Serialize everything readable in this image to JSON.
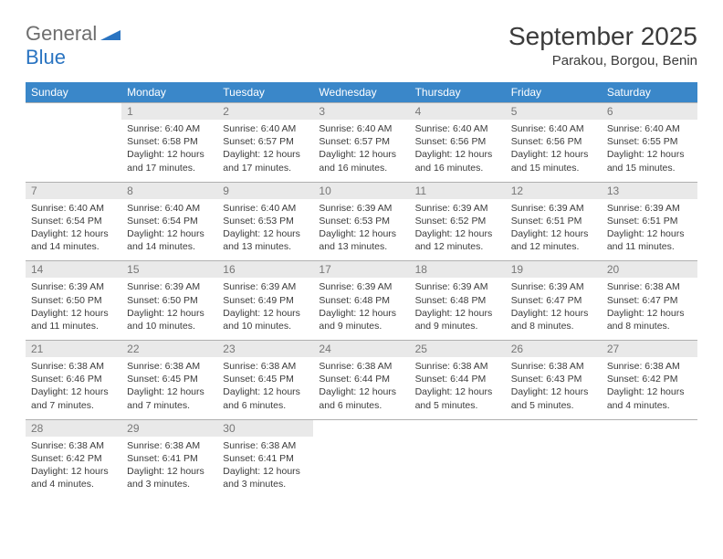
{
  "logo": {
    "general": "General",
    "blue": "Blue",
    "accent_color": "#2a74c1",
    "shape_color": "#2a74c1"
  },
  "header": {
    "title": "September 2025",
    "location": "Parakou, Borgou, Benin"
  },
  "colors": {
    "header_bg": "#3a87c9",
    "header_fg": "#ffffff",
    "daynum_bg": "#e9e9e9",
    "daynum_fg": "#777777",
    "text": "#3b3b3b",
    "row_border": "#b0b0b0"
  },
  "weekdays": [
    "Sunday",
    "Monday",
    "Tuesday",
    "Wednesday",
    "Thursday",
    "Friday",
    "Saturday"
  ],
  "weeks": [
    [
      null,
      {
        "n": "1",
        "sr": "Sunrise: 6:40 AM",
        "ss": "Sunset: 6:58 PM",
        "dl": "Daylight: 12 hours and 17 minutes."
      },
      {
        "n": "2",
        "sr": "Sunrise: 6:40 AM",
        "ss": "Sunset: 6:57 PM",
        "dl": "Daylight: 12 hours and 17 minutes."
      },
      {
        "n": "3",
        "sr": "Sunrise: 6:40 AM",
        "ss": "Sunset: 6:57 PM",
        "dl": "Daylight: 12 hours and 16 minutes."
      },
      {
        "n": "4",
        "sr": "Sunrise: 6:40 AM",
        "ss": "Sunset: 6:56 PM",
        "dl": "Daylight: 12 hours and 16 minutes."
      },
      {
        "n": "5",
        "sr": "Sunrise: 6:40 AM",
        "ss": "Sunset: 6:56 PM",
        "dl": "Daylight: 12 hours and 15 minutes."
      },
      {
        "n": "6",
        "sr": "Sunrise: 6:40 AM",
        "ss": "Sunset: 6:55 PM",
        "dl": "Daylight: 12 hours and 15 minutes."
      }
    ],
    [
      {
        "n": "7",
        "sr": "Sunrise: 6:40 AM",
        "ss": "Sunset: 6:54 PM",
        "dl": "Daylight: 12 hours and 14 minutes."
      },
      {
        "n": "8",
        "sr": "Sunrise: 6:40 AM",
        "ss": "Sunset: 6:54 PM",
        "dl": "Daylight: 12 hours and 14 minutes."
      },
      {
        "n": "9",
        "sr": "Sunrise: 6:40 AM",
        "ss": "Sunset: 6:53 PM",
        "dl": "Daylight: 12 hours and 13 minutes."
      },
      {
        "n": "10",
        "sr": "Sunrise: 6:39 AM",
        "ss": "Sunset: 6:53 PM",
        "dl": "Daylight: 12 hours and 13 minutes."
      },
      {
        "n": "11",
        "sr": "Sunrise: 6:39 AM",
        "ss": "Sunset: 6:52 PM",
        "dl": "Daylight: 12 hours and 12 minutes."
      },
      {
        "n": "12",
        "sr": "Sunrise: 6:39 AM",
        "ss": "Sunset: 6:51 PM",
        "dl": "Daylight: 12 hours and 12 minutes."
      },
      {
        "n": "13",
        "sr": "Sunrise: 6:39 AM",
        "ss": "Sunset: 6:51 PM",
        "dl": "Daylight: 12 hours and 11 minutes."
      }
    ],
    [
      {
        "n": "14",
        "sr": "Sunrise: 6:39 AM",
        "ss": "Sunset: 6:50 PM",
        "dl": "Daylight: 12 hours and 11 minutes."
      },
      {
        "n": "15",
        "sr": "Sunrise: 6:39 AM",
        "ss": "Sunset: 6:50 PM",
        "dl": "Daylight: 12 hours and 10 minutes."
      },
      {
        "n": "16",
        "sr": "Sunrise: 6:39 AM",
        "ss": "Sunset: 6:49 PM",
        "dl": "Daylight: 12 hours and 10 minutes."
      },
      {
        "n": "17",
        "sr": "Sunrise: 6:39 AM",
        "ss": "Sunset: 6:48 PM",
        "dl": "Daylight: 12 hours and 9 minutes."
      },
      {
        "n": "18",
        "sr": "Sunrise: 6:39 AM",
        "ss": "Sunset: 6:48 PM",
        "dl": "Daylight: 12 hours and 9 minutes."
      },
      {
        "n": "19",
        "sr": "Sunrise: 6:39 AM",
        "ss": "Sunset: 6:47 PM",
        "dl": "Daylight: 12 hours and 8 minutes."
      },
      {
        "n": "20",
        "sr": "Sunrise: 6:38 AM",
        "ss": "Sunset: 6:47 PM",
        "dl": "Daylight: 12 hours and 8 minutes."
      }
    ],
    [
      {
        "n": "21",
        "sr": "Sunrise: 6:38 AM",
        "ss": "Sunset: 6:46 PM",
        "dl": "Daylight: 12 hours and 7 minutes."
      },
      {
        "n": "22",
        "sr": "Sunrise: 6:38 AM",
        "ss": "Sunset: 6:45 PM",
        "dl": "Daylight: 12 hours and 7 minutes."
      },
      {
        "n": "23",
        "sr": "Sunrise: 6:38 AM",
        "ss": "Sunset: 6:45 PM",
        "dl": "Daylight: 12 hours and 6 minutes."
      },
      {
        "n": "24",
        "sr": "Sunrise: 6:38 AM",
        "ss": "Sunset: 6:44 PM",
        "dl": "Daylight: 12 hours and 6 minutes."
      },
      {
        "n": "25",
        "sr": "Sunrise: 6:38 AM",
        "ss": "Sunset: 6:44 PM",
        "dl": "Daylight: 12 hours and 5 minutes."
      },
      {
        "n": "26",
        "sr": "Sunrise: 6:38 AM",
        "ss": "Sunset: 6:43 PM",
        "dl": "Daylight: 12 hours and 5 minutes."
      },
      {
        "n": "27",
        "sr": "Sunrise: 6:38 AM",
        "ss": "Sunset: 6:42 PM",
        "dl": "Daylight: 12 hours and 4 minutes."
      }
    ],
    [
      {
        "n": "28",
        "sr": "Sunrise: 6:38 AM",
        "ss": "Sunset: 6:42 PM",
        "dl": "Daylight: 12 hours and 4 minutes."
      },
      {
        "n": "29",
        "sr": "Sunrise: 6:38 AM",
        "ss": "Sunset: 6:41 PM",
        "dl": "Daylight: 12 hours and 3 minutes."
      },
      {
        "n": "30",
        "sr": "Sunrise: 6:38 AM",
        "ss": "Sunset: 6:41 PM",
        "dl": "Daylight: 12 hours and 3 minutes."
      },
      null,
      null,
      null,
      null
    ]
  ]
}
